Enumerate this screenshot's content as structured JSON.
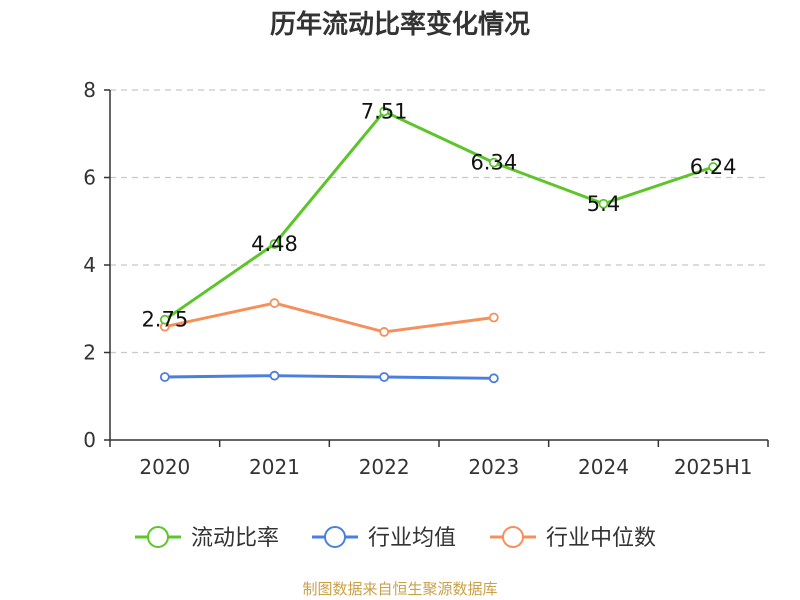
{
  "title": "历年流动比率变化情况",
  "footer": "制图数据来自恒生聚源数据库",
  "chart_data": {
    "type": "line",
    "categories": [
      "2020",
      "2021",
      "2022",
      "2023",
      "2024",
      "2025H1"
    ],
    "ylim": [
      0,
      8
    ],
    "yticks": [
      0,
      2,
      4,
      6,
      8
    ],
    "grid": true,
    "legend_position": "bottom",
    "series": [
      {
        "name": "流动比率",
        "color": "#5cc52a",
        "values": [
          2.75,
          4.48,
          7.51,
          6.34,
          5.4,
          6.24
        ],
        "labels": [
          "2.75",
          "4.48",
          "7.51",
          "6.34",
          "5.4",
          "6.24"
        ],
        "show_labels": true
      },
      {
        "name": "行业均值",
        "color": "#4b7fde",
        "values": [
          1.44,
          1.47,
          1.44,
          1.41,
          null,
          null
        ],
        "show_labels": false
      },
      {
        "name": "行业中位数",
        "color": "#f5905a",
        "values": [
          2.59,
          3.13,
          2.47,
          2.8,
          null,
          null
        ],
        "show_labels": false
      }
    ]
  }
}
